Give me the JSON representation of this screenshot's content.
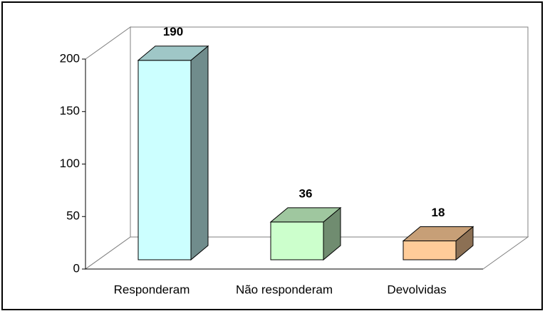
{
  "chart_data": {
    "type": "bar3d",
    "categories": [
      "Responderam",
      "Não responderam",
      "Devolvidas"
    ],
    "values": [
      190,
      36,
      18
    ],
    "colors": [
      "#ccffff",
      "#ccffcc",
      "#ffcc99"
    ],
    "ylim": [
      0,
      200
    ],
    "yticks": [
      0,
      50,
      100,
      150,
      200
    ]
  }
}
